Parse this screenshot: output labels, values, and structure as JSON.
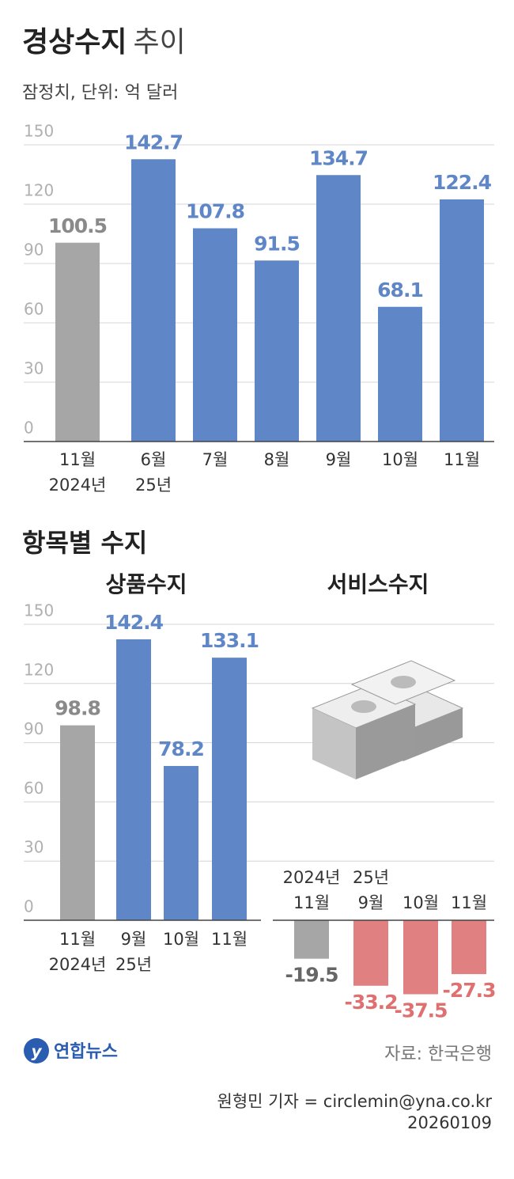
{
  "header": {
    "title_bold": "경상수지",
    "title_light": "추이",
    "subtitle": "잠정치, 단위: 억 달러"
  },
  "section_title": "항목별 수지",
  "chart_data": [
    {
      "type": "bar",
      "categories": [
        [
          "11월",
          "2024년"
        ],
        [
          "6월",
          "25년"
        ],
        [
          "7월"
        ],
        [
          "8월"
        ],
        [
          "9월"
        ],
        [
          "10월"
        ],
        [
          "11월"
        ]
      ],
      "values": [
        100.5,
        142.7,
        107.8,
        91.5,
        134.7,
        68.1,
        122.4
      ],
      "colors": [
        "#a6a6a6",
        "#5f87c8",
        "#5f87c8",
        "#5f87c8",
        "#5f87c8",
        "#5f87c8",
        "#5f87c8"
      ],
      "label_colors": [
        "#8a8a8a",
        "#5f87c8",
        "#5f87c8",
        "#5f87c8",
        "#5f87c8",
        "#5f87c8",
        "#5f87c8"
      ],
      "ylim": [
        0,
        150
      ],
      "yticks": [
        0,
        30,
        60,
        90,
        120,
        150
      ],
      "grid": true
    },
    {
      "type": "bar",
      "title": "상품수지",
      "categories": [
        [
          "11월",
          "2024년"
        ],
        [
          "9월",
          "25년"
        ],
        [
          "10월"
        ],
        [
          "11월"
        ]
      ],
      "values": [
        98.8,
        142.4,
        78.2,
        133.1
      ],
      "colors": [
        "#a6a6a6",
        "#5f87c8",
        "#5f87c8",
        "#5f87c8"
      ],
      "label_colors": [
        "#8a8a8a",
        "#5f87c8",
        "#5f87c8",
        "#5f87c8"
      ],
      "ylim": [
        0,
        150
      ],
      "yticks": [
        0,
        30,
        60,
        90,
        120,
        150
      ],
      "grid": true
    },
    {
      "type": "bar",
      "title": "서비스수지",
      "categories": [
        [
          "2024년",
          "11월"
        ],
        [
          "25년",
          "9월"
        ],
        [
          "10월"
        ],
        [
          "11월"
        ]
      ],
      "values": [
        -19.5,
        -33.2,
        -37.5,
        -27.3
      ],
      "colors": [
        "#a6a6a6",
        "#e08080",
        "#e08080",
        "#e08080"
      ],
      "label_colors": [
        "#666666",
        "#e07070",
        "#e07070",
        "#e07070"
      ],
      "ylim": [
        -40,
        150
      ]
    }
  ],
  "footer": {
    "logo": "연합뉴스",
    "source": "자료: 한국은행",
    "credit": "원형민 기자 = circlemin@yna.co.kr",
    "date": "20260109"
  }
}
